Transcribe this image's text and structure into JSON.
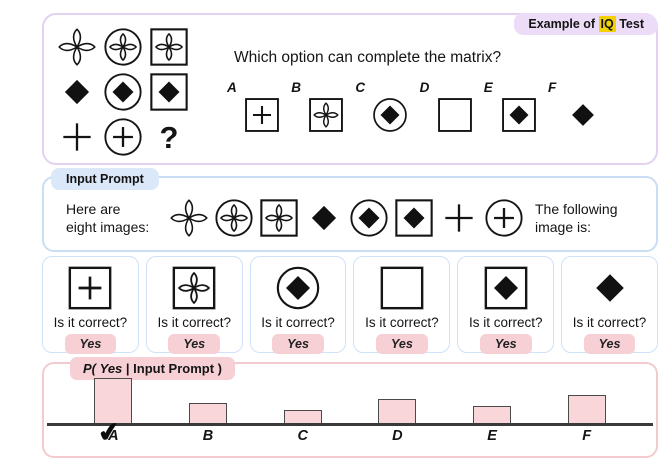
{
  "example_panel": {
    "badge": {
      "prefix": "Example of ",
      "highlight": "IQ",
      "suffix": " Test"
    },
    "question": "Which option can complete the matrix?",
    "question_mark": "?",
    "matrix": [
      [
        "flower",
        "circle-flower",
        "square-flower"
      ],
      [
        "diamond",
        "circle-diamond",
        "square-diamond"
      ],
      [
        "plus",
        "circle-plus",
        "question"
      ]
    ],
    "options": [
      {
        "label": "A",
        "symbol": "square-plus"
      },
      {
        "label": "B",
        "symbol": "square-flower"
      },
      {
        "label": "C",
        "symbol": "circle-diamond"
      },
      {
        "label": "D",
        "symbol": "square-empty"
      },
      {
        "label": "E",
        "symbol": "square-diamond"
      },
      {
        "label": "F",
        "symbol": "diamond"
      }
    ]
  },
  "input_prompt": {
    "badge": "Input Prompt",
    "intro": [
      "Here are",
      "eight images:"
    ],
    "images": [
      "flower",
      "circle-flower",
      "square-flower",
      "diamond",
      "circle-diamond",
      "square-diamond",
      "plus",
      "circle-plus"
    ],
    "outro": [
      "The following",
      "image is:"
    ]
  },
  "answer_cards": [
    {
      "symbol": "square-plus",
      "question": "Is it correct?",
      "answer": "Yes"
    },
    {
      "symbol": "square-flower",
      "question": "Is it correct?",
      "answer": "Yes"
    },
    {
      "symbol": "circle-diamond",
      "question": "Is it correct?",
      "answer": "Yes"
    },
    {
      "symbol": "square-empty",
      "question": "Is it correct?",
      "answer": "Yes"
    },
    {
      "symbol": "square-diamond",
      "question": "Is it correct?",
      "answer": "Yes"
    },
    {
      "symbol": "diamond",
      "question": "Is it correct?",
      "answer": "Yes"
    }
  ],
  "probability_panel": {
    "badge": {
      "p": "P(",
      "yes": "Yes",
      "rest": "| Input Prompt )"
    },
    "check_icon": "✔"
  },
  "chart_data": {
    "type": "bar",
    "title": "P( Yes | Input Prompt )",
    "categories": [
      "A",
      "B",
      "C",
      "D",
      "E",
      "F"
    ],
    "values": [
      0.45,
      0.2,
      0.13,
      0.24,
      0.17,
      0.28
    ],
    "xlabel": "",
    "ylabel": "",
    "ylim": [
      0,
      0.5
    ],
    "grid": false,
    "legend": false,
    "correct_answer": "A"
  },
  "colors": {
    "purple_border": "#e3d1f0",
    "purple_badge_bg": "#ecdcf7",
    "iq_highlight": "#f2d202",
    "blue_border": "#c9def4",
    "blue_badge_bg": "#dbe8f9",
    "pink_border": "#f3cbcf",
    "pink_badge_bg": "#f6d0d4",
    "yes_button_bg": "#f6d0d4",
    "bar_fill": "#f8d6d9",
    "bar_border": "#4a4a4a",
    "axis_color": "#3a3a3a",
    "ink": "#141414"
  }
}
